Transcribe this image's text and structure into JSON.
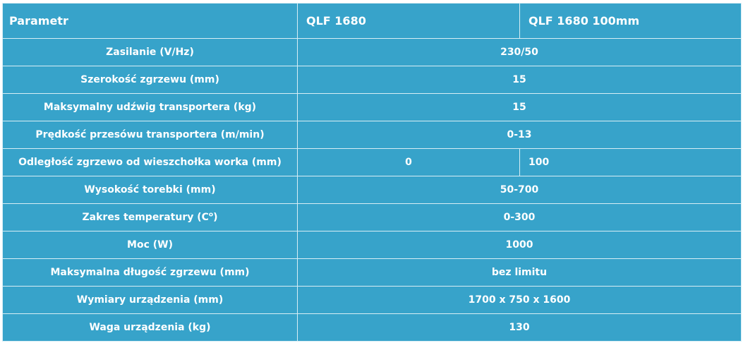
{
  "header": {
    "parameter": "Parametr",
    "model_a": "QLF 1680",
    "model_b": "QLF 1680 100mm"
  },
  "rows": [
    {
      "name": "Zasilanie (V/Hz)",
      "value": "230/50"
    },
    {
      "name": "Szerokość zgrzewu (mm)",
      "value": "15"
    },
    {
      "name": "Maksymalny udźwig transportera (kg)",
      "value": "15"
    },
    {
      "name": "Prędkość przesówu transportera (m/min)",
      "value": "0-13"
    },
    {
      "name": "Odległość zgrzewo od wieszchołka worka (mm)",
      "value_a": "0",
      "value_b": "100"
    },
    {
      "name": "Wysokość torebki (mm)",
      "value": "50-700"
    },
    {
      "name_prefix": "Zakres temperatury (C",
      "name_sup": "o",
      "name_suffix": ")",
      "value": "0-300"
    },
    {
      "name": "Moc (W)",
      "value": "1000"
    },
    {
      "name": "Maksymalna długość zgrzewu (mm)",
      "value": "bez limitu"
    },
    {
      "name": "Wymiary urządzenia (mm)",
      "value": "1700 x 750 x 1600"
    },
    {
      "name": "Waga urządzenia (kg)",
      "value": "130"
    }
  ]
}
